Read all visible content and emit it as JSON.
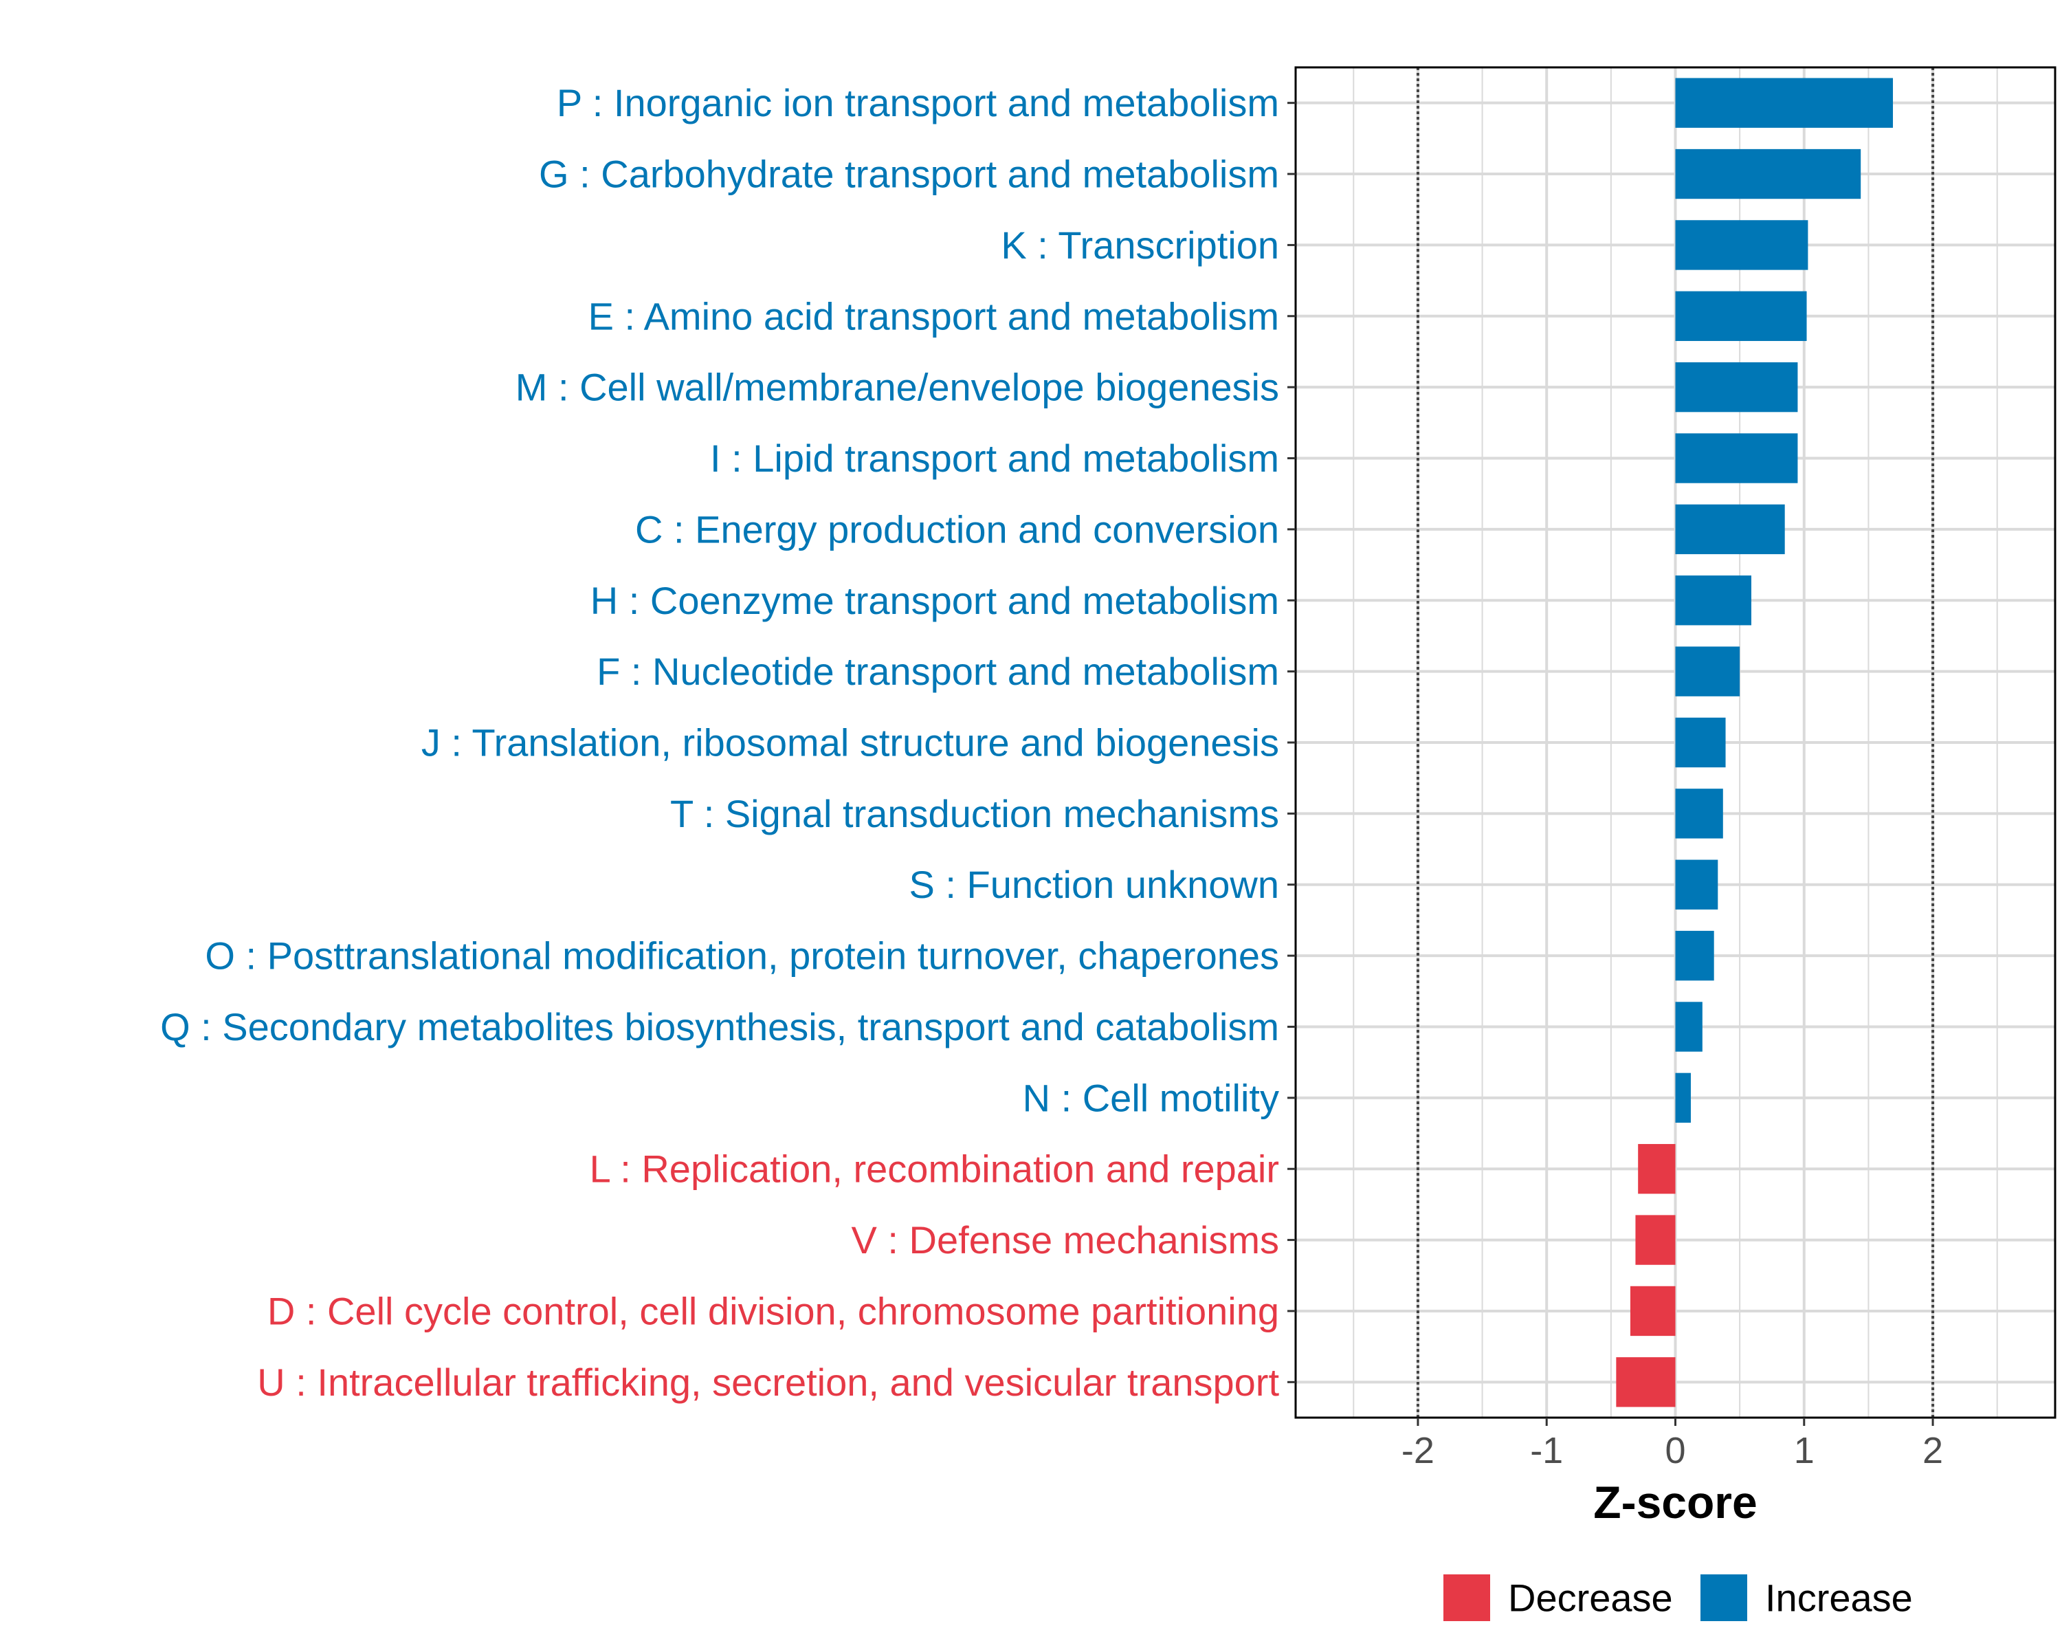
{
  "chart_data": {
    "type": "bar",
    "orientation": "horizontal",
    "title": "",
    "xlabel": "Z-score",
    "ylabel": "",
    "xlim": [
      -2.95,
      2.95
    ],
    "xticks": [
      -2,
      -1,
      0,
      1,
      2
    ],
    "xtick_labels": [
      "-2",
      "-1",
      "0",
      "1",
      "2"
    ],
    "reference_lines": [
      -2,
      2
    ],
    "grid": true,
    "categories": [
      "P : Inorganic ion transport and metabolism",
      "G : Carbohydrate transport and metabolism",
      "K : Transcription",
      "E : Amino acid transport and metabolism",
      "M : Cell wall/membrane/envelope biogenesis",
      "I : Lipid transport and metabolism",
      "C : Energy production and conversion",
      "H : Coenzyme transport and metabolism",
      "F : Nucleotide transport and metabolism",
      "J : Translation, ribosomal structure and biogenesis",
      "T : Signal transduction mechanisms",
      "S : Function unknown",
      "O : Posttranslational modification, protein turnover, chaperones",
      "Q : Secondary metabolites biosynthesis, transport and catabolism",
      "N : Cell motility",
      "L : Replication, recombination and repair",
      "V : Defense mechanisms",
      "D : Cell cycle control, cell division, chromosome partitioning",
      "U : Intracellular trafficking, secretion, and vesicular transport"
    ],
    "values": [
      1.69,
      1.44,
      1.03,
      1.02,
      0.95,
      0.95,
      0.85,
      0.59,
      0.5,
      0.39,
      0.37,
      0.33,
      0.3,
      0.21,
      0.12,
      -0.29,
      -0.31,
      -0.35,
      -0.46
    ],
    "groups": [
      "Increase",
      "Increase",
      "Increase",
      "Increase",
      "Increase",
      "Increase",
      "Increase",
      "Increase",
      "Increase",
      "Increase",
      "Increase",
      "Increase",
      "Increase",
      "Increase",
      "Increase",
      "Decrease",
      "Decrease",
      "Decrease",
      "Decrease"
    ],
    "legend": {
      "position": "bottom",
      "entries": [
        {
          "label": "Decrease",
          "color": "#e63946"
        },
        {
          "label": "Increase",
          "color": "#0077b6"
        }
      ]
    },
    "colors": {
      "Increase": "#0077b6",
      "Decrease": "#e63946",
      "grid": "#dadada",
      "axis": "#000000",
      "reference_line": "#444444"
    }
  }
}
